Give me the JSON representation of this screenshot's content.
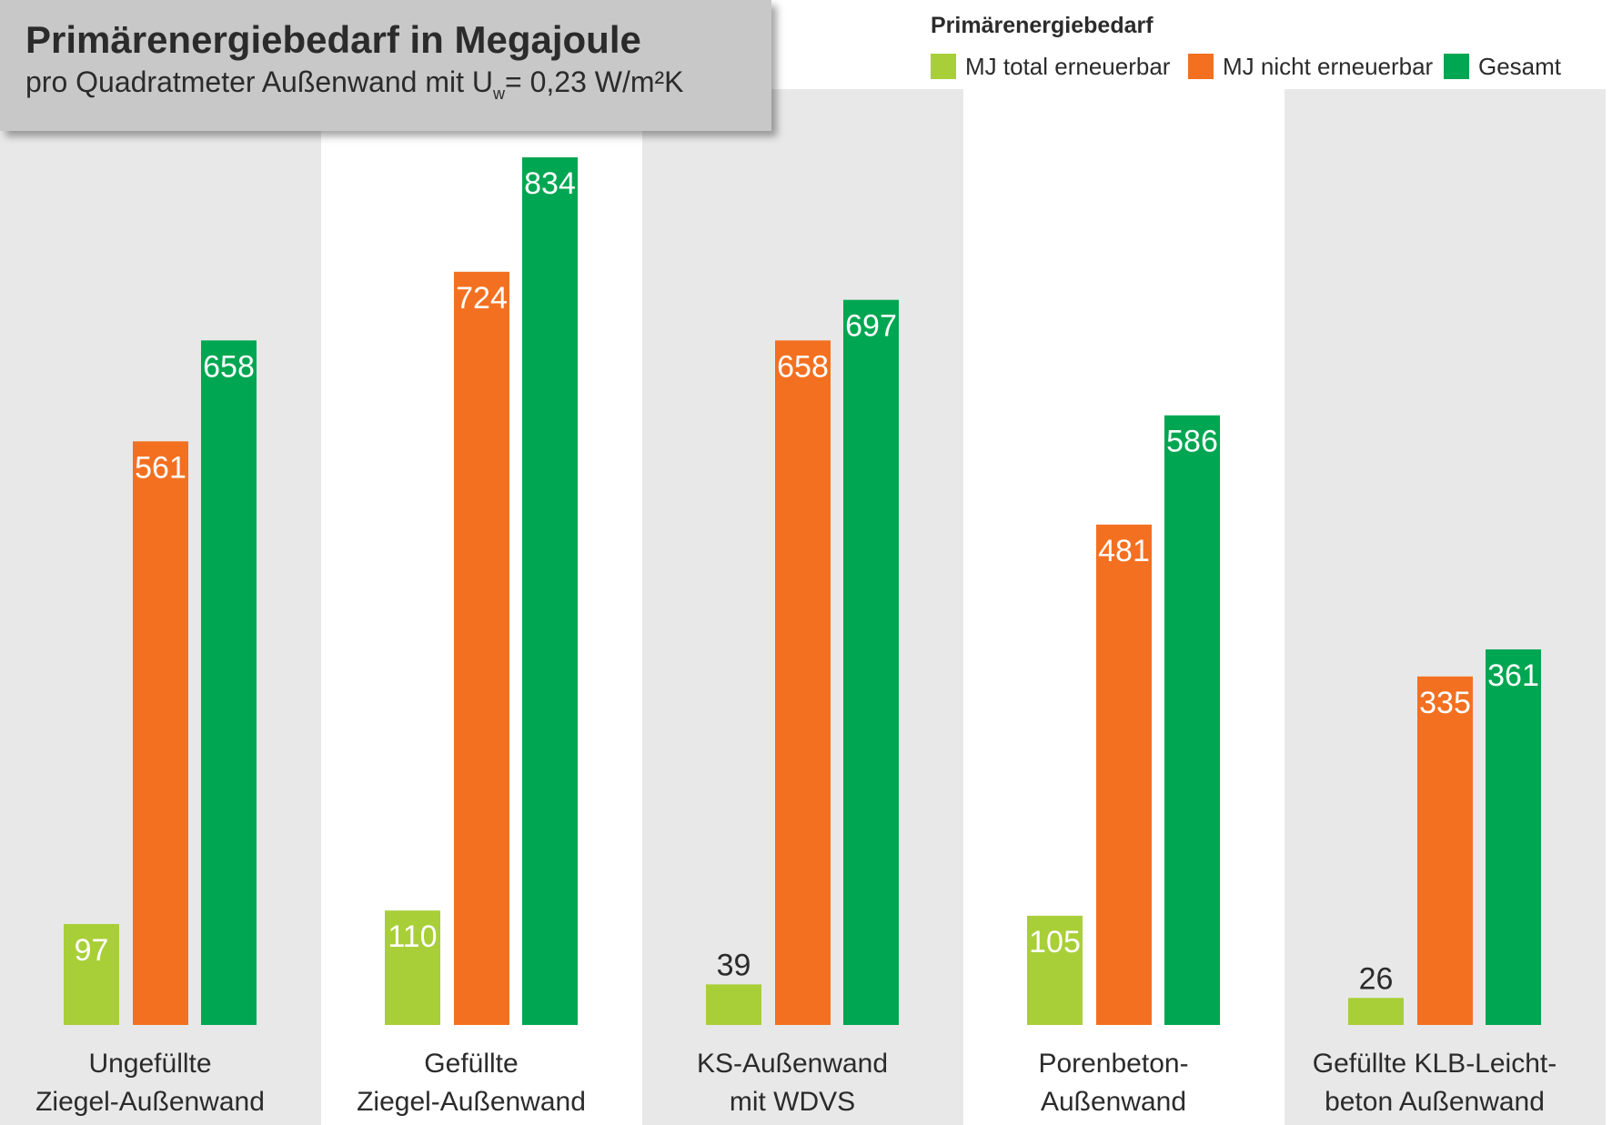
{
  "title": {
    "main": "Primärenergiebedarf in Megajoule",
    "sub_prefix": "pro Quadratmeter Außenwand mit U",
    "sub_subscript": "w",
    "sub_suffix": "= 0,23 W/m²K"
  },
  "legend": {
    "title": "Primärenergiebedarf"
  },
  "colors": {
    "panel_shaded": "#e8e8e8",
    "panel_plain": "#ffffff",
    "label_dark": "#2b2b2b",
    "label_light": "#ffffff"
  },
  "chart_data": {
    "type": "bar",
    "title": "Primärenergiebedarf in Megajoule",
    "subtitle": "pro Quadratmeter Außenwand mit Uw= 0,23 W/m²K",
    "xlabel": "",
    "ylabel": "",
    "ylim": [
      0,
      900
    ],
    "grid": false,
    "legend_position": "top-right",
    "categories": [
      [
        "Ungefüllte",
        "Ziegel-Außenwand"
      ],
      [
        "Gefüllte",
        "Ziegel-Außenwand"
      ],
      [
        "KS-Außenwand",
        "mit WDVS"
      ],
      [
        "Porenbeton-",
        "Außenwand"
      ],
      [
        "Gefüllte KLB-Leicht-",
        "beton Außenwand"
      ]
    ],
    "series": [
      {
        "name": "MJ total erneuerbar",
        "color": "#a8cf38",
        "values": [
          97,
          110,
          39,
          105,
          26
        ]
      },
      {
        "name": "MJ nicht erneuerbar",
        "color": "#f37021",
        "values": [
          561,
          724,
          658,
          481,
          335
        ]
      },
      {
        "name": "Gesamt",
        "color": "#00a651",
        "values": [
          658,
          834,
          697,
          586,
          361
        ]
      }
    ]
  }
}
